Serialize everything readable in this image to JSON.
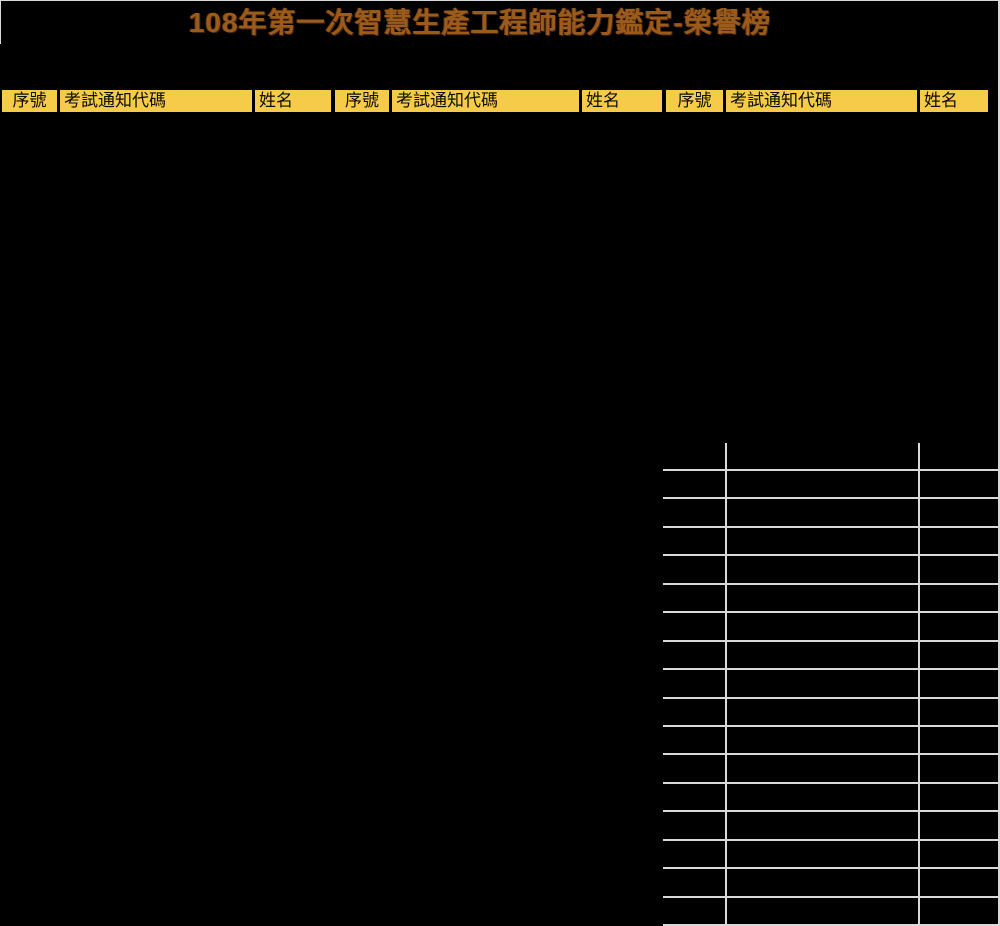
{
  "title": "108年第一次智慧生產工程師能力鑑定-榮譽榜",
  "table": {
    "header_columns": [
      "序號",
      "考試通知代碼",
      "姓名",
      "序號",
      "考試通知代碼",
      "姓名",
      "序號",
      "考試通知代碼",
      "姓名"
    ],
    "column_groups": 3,
    "visible_empty_rows": 16,
    "body_rows_content": ""
  },
  "colors": {
    "background": "#000000",
    "header_fill_gold": "#F5CB49",
    "header_text": "#0D0D00",
    "title_brown": "#9A5B1B",
    "grid_line_gray": "#D9D9D9"
  }
}
